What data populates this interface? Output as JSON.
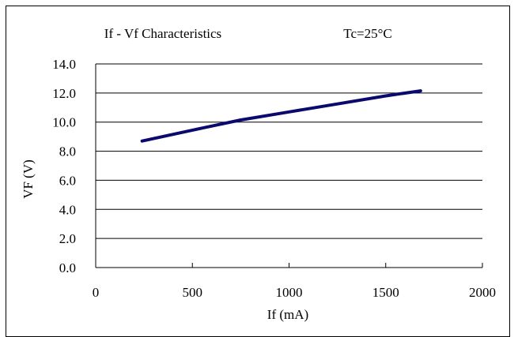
{
  "chart_data": {
    "type": "line",
    "title": "If - Vf Characteristics",
    "condition": "Tc=25°C",
    "xlabel": "If (mA)",
    "ylabel": "VF (V)",
    "xlim": [
      0,
      2000
    ],
    "ylim": [
      0,
      14
    ],
    "x_ticks": [
      "0",
      "500",
      "1000",
      "1500",
      "2000"
    ],
    "y_ticks": [
      "0.0",
      "2.0",
      "4.0",
      "6.0",
      "8.0",
      "10.0",
      "12.0",
      "14.0"
    ],
    "grid": "horizontal",
    "legend": "none",
    "series": [
      {
        "color": "#0a0a6e",
        "x": [
          240,
          500,
          750,
          1000,
          1250,
          1500,
          1680
        ],
        "y": [
          8.7,
          9.45,
          10.15,
          10.7,
          11.25,
          11.8,
          12.15
        ]
      }
    ]
  }
}
